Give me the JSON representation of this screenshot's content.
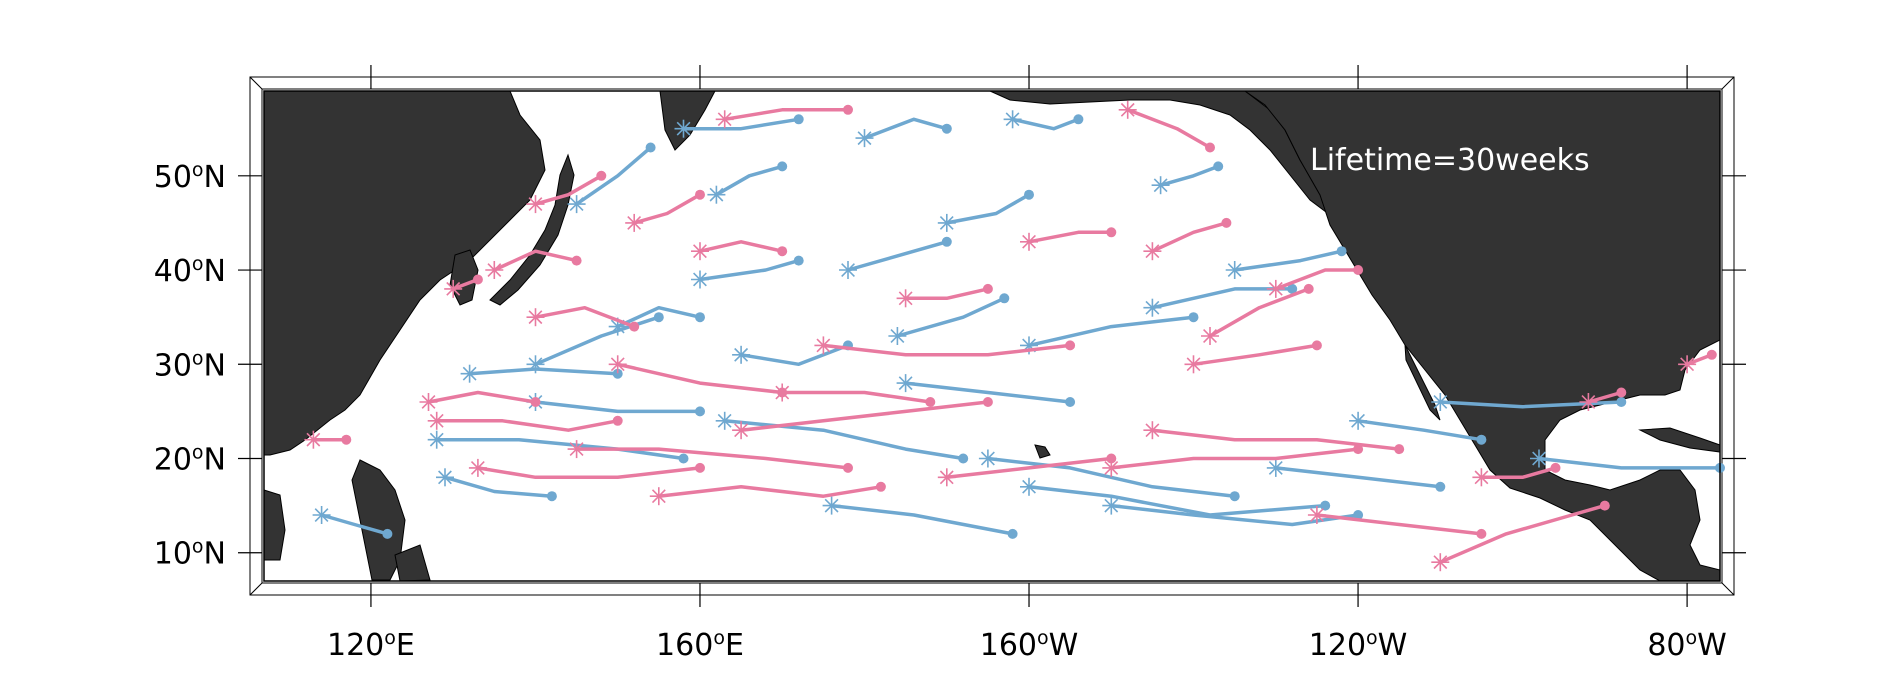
{
  "map": {
    "annotation": "Lifetime=30weeks",
    "projection": "equirectangular",
    "lon_range_east": [
      107,
      284
    ],
    "lat_range": [
      7,
      59
    ],
    "grid": false,
    "colors": {
      "land": "#333333",
      "ocean": "#ffffff",
      "series_a": "#6fa8d0",
      "series_b": "#e87aa0",
      "annotation_text": "#ffffff"
    },
    "lat_ticks": [
      {
        "value": 50,
        "num": "50",
        "sup": "o",
        "hemi": "N"
      },
      {
        "value": 40,
        "num": "40",
        "sup": "o",
        "hemi": "N"
      },
      {
        "value": 30,
        "num": "30",
        "sup": "o",
        "hemi": "N"
      },
      {
        "value": 20,
        "num": "20",
        "sup": "o",
        "hemi": "N"
      },
      {
        "value": 10,
        "num": "10",
        "sup": "o",
        "hemi": "N"
      }
    ],
    "lon_ticks": [
      {
        "value": 120,
        "num": "120",
        "sup": "o",
        "hemi": "E"
      },
      {
        "value": 160,
        "num": "160",
        "sup": "o",
        "hemi": "E"
      },
      {
        "value": 200,
        "num": "160",
        "sup": "o",
        "hemi": "W"
      },
      {
        "value": 240,
        "num": "120",
        "sup": "o",
        "hemi": "W"
      },
      {
        "value": 280,
        "num": "80",
        "sup": "o",
        "hemi": "W"
      }
    ]
  },
  "chart_data": {
    "type": "line",
    "title": "",
    "xlabel": "",
    "ylabel": "",
    "xlim": [
      107,
      284
    ],
    "ylim": [
      7,
      59
    ],
    "note": "trajectories: start marked with asterisk, end marked with dot; x in degrees east, y in degrees north",
    "series": [
      {
        "color": "#6fa8d0",
        "tracks": [
          [
            [
              114,
              14
            ],
            [
              118,
              13
            ],
            [
              122,
              12
            ]
          ],
          [
            [
              129,
              18
            ],
            [
              135,
              16.5
            ],
            [
              142,
              16
            ]
          ],
          [
            [
              128,
              22
            ],
            [
              138,
              22
            ],
            [
              150,
              21
            ],
            [
              158,
              20
            ]
          ],
          [
            [
              132,
              29
            ],
            [
              140,
              29.5
            ],
            [
              150,
              29
            ]
          ],
          [
            [
              140,
              26
            ],
            [
              150,
              25
            ],
            [
              160,
              25
            ]
          ],
          [
            [
              163,
              24
            ],
            [
              175,
              23
            ],
            [
              185,
              21
            ],
            [
              192,
              20
            ]
          ],
          [
            [
              176,
              15
            ],
            [
              186,
              14
            ],
            [
              198,
              12
            ]
          ],
          [
            [
              195,
              20
            ],
            [
              205,
              19
            ],
            [
              215,
              17
            ],
            [
              225,
              16
            ]
          ],
          [
            [
              200,
              17
            ],
            [
              210,
              16
            ],
            [
              222,
              14
            ],
            [
              236,
              15
            ]
          ],
          [
            [
              210,
              15
            ],
            [
              220,
              14
            ],
            [
              232,
              13
            ],
            [
              240,
              14
            ]
          ],
          [
            [
              230,
              19
            ],
            [
              240,
              18
            ],
            [
              250,
              17
            ]
          ],
          [
            [
              240,
              24
            ],
            [
              248,
              23
            ],
            [
              255,
              22
            ]
          ],
          [
            [
              250,
              26
            ],
            [
              260,
              25.5
            ],
            [
              272,
              26
            ]
          ],
          [
            [
              262,
              20
            ],
            [
              272,
              19
            ],
            [
              284,
              19
            ]
          ],
          [
            [
              184,
              33
            ],
            [
              192,
              35
            ],
            [
              197,
              37
            ]
          ],
          [
            [
              200,
              32
            ],
            [
              210,
              34
            ],
            [
              220,
              35
            ]
          ],
          [
            [
              215,
              36
            ],
            [
              225,
              38
            ],
            [
              232,
              38
            ]
          ],
          [
            [
              225,
              40
            ],
            [
              233,
              41
            ],
            [
              238,
              42
            ]
          ],
          [
            [
              150,
              34
            ],
            [
              155,
              36
            ],
            [
              160,
              35
            ]
          ],
          [
            [
              160,
              39
            ],
            [
              168,
              40
            ],
            [
              172,
              41
            ]
          ],
          [
            [
              178,
              40
            ],
            [
              186,
              42
            ],
            [
              190,
              43
            ]
          ],
          [
            [
              190,
              45
            ],
            [
              196,
              46
            ],
            [
              200,
              48
            ]
          ],
          [
            [
              162,
              48
            ],
            [
              166,
              50
            ],
            [
              170,
              51
            ]
          ],
          [
            [
              145,
              47
            ],
            [
              150,
              50
            ],
            [
              154,
              53
            ]
          ],
          [
            [
              158,
              55
            ],
            [
              165,
              55
            ],
            [
              172,
              56
            ]
          ],
          [
            [
              180,
              54
            ],
            [
              186,
              56
            ],
            [
              190,
              55
            ]
          ],
          [
            [
              198,
              56
            ],
            [
              203,
              55
            ],
            [
              206,
              56
            ]
          ],
          [
            [
              216,
              49
            ],
            [
              220,
              50
            ],
            [
              223,
              51
            ]
          ],
          [
            [
              140,
              30
            ],
            [
              148,
              33
            ],
            [
              155,
              35
            ]
          ],
          [
            [
              185,
              28
            ],
            [
              195,
              27
            ],
            [
              205,
              26
            ]
          ],
          [
            [
              165,
              31
            ],
            [
              172,
              30
            ],
            [
              178,
              32
            ]
          ]
        ]
      },
      {
        "color": "#e87aa0",
        "tracks": [
          [
            [
              113,
              22
            ],
            [
              117,
              22
            ]
          ],
          [
            [
              127,
              26
            ],
            [
              133,
              27
            ],
            [
              140,
              26
            ]
          ],
          [
            [
              128,
              24
            ],
            [
              136,
              24
            ],
            [
              144,
              23
            ],
            [
              150,
              24
            ]
          ],
          [
            [
              133,
              19
            ],
            [
              140,
              18
            ],
            [
              150,
              18
            ],
            [
              160,
              19
            ]
          ],
          [
            [
              145,
              21
            ],
            [
              155,
              21
            ],
            [
              168,
              20
            ],
            [
              178,
              19
            ]
          ],
          [
            [
              155,
              16
            ],
            [
              165,
              17
            ],
            [
              175,
              16
            ],
            [
              182,
              17
            ]
          ],
          [
            [
              150,
              30
            ],
            [
              160,
              28
            ],
            [
              170,
              27
            ]
          ],
          [
            [
              165,
              23
            ],
            [
              175,
              24
            ],
            [
              185,
              25
            ],
            [
              195,
              26
            ]
          ],
          [
            [
              170,
              27
            ],
            [
              180,
              27
            ],
            [
              188,
              26
            ]
          ],
          [
            [
              175,
              32
            ],
            [
              185,
              31
            ],
            [
              195,
              31
            ],
            [
              205,
              32
            ]
          ],
          [
            [
              190,
              18
            ],
            [
              200,
              19
            ],
            [
              210,
              20
            ]
          ],
          [
            [
              210,
              19
            ],
            [
              220,
              20
            ],
            [
              230,
              20
            ],
            [
              240,
              21
            ]
          ],
          [
            [
              215,
              23
            ],
            [
              225,
              22
            ],
            [
              235,
              22
            ],
            [
              245,
              21
            ]
          ],
          [
            [
              235,
              14
            ],
            [
              245,
              13
            ],
            [
              255,
              12
            ]
          ],
          [
            [
              250,
              9
            ],
            [
              258,
              12
            ],
            [
              266,
              14
            ],
            [
              270,
              15
            ]
          ],
          [
            [
              255,
              18
            ],
            [
              260,
              18
            ],
            [
              264,
              19
            ]
          ],
          [
            [
              220,
              30
            ],
            [
              228,
              31
            ],
            [
              235,
              32
            ]
          ],
          [
            [
              222,
              33
            ],
            [
              228,
              36
            ],
            [
              234,
              38
            ]
          ],
          [
            [
              230,
              38
            ],
            [
              236,
              40
            ],
            [
              240,
              40
            ]
          ],
          [
            [
              200,
              43
            ],
            [
              206,
              44
            ],
            [
              210,
              44
            ]
          ],
          [
            [
              185,
              37
            ],
            [
              190,
              37
            ],
            [
              195,
              38
            ]
          ],
          [
            [
              160,
              42
            ],
            [
              165,
              43
            ],
            [
              170,
              42
            ]
          ],
          [
            [
              152,
              45
            ],
            [
              156,
              46
            ],
            [
              160,
              48
            ]
          ],
          [
            [
              140,
              35
            ],
            [
              146,
              36
            ],
            [
              152,
              34
            ]
          ],
          [
            [
              135,
              40
            ],
            [
              140,
              42
            ],
            [
              145,
              41
            ]
          ],
          [
            [
              130,
              38
            ],
            [
              133,
              39
            ]
          ],
          [
            [
              140,
              47
            ],
            [
              144,
              48
            ],
            [
              148,
              50
            ]
          ],
          [
            [
              163,
              56
            ],
            [
              170,
              57
            ],
            [
              178,
              57
            ]
          ],
          [
            [
              212,
              57
            ],
            [
              218,
              55
            ],
            [
              222,
              53
            ]
          ],
          [
            [
              215,
              42
            ],
            [
              220,
              44
            ],
            [
              224,
              45
            ]
          ],
          [
            [
              268,
              26
            ],
            [
              272,
              27
            ]
          ],
          [
            [
              280,
              30
            ],
            [
              283,
              31
            ]
          ]
        ]
      }
    ]
  }
}
